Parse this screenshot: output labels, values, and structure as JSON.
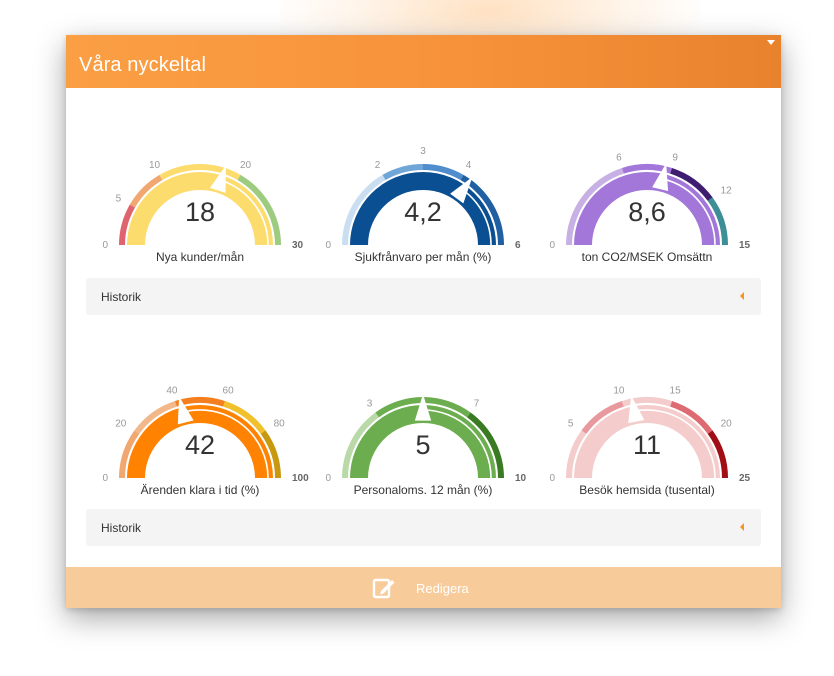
{
  "header": {
    "title": "Våra nyckeltal"
  },
  "gauges": [
    {
      "value": 18,
      "display": "18",
      "label": "Nya kunder/mån",
      "min": 0,
      "max": 30,
      "ticks": [
        0,
        5,
        10,
        20,
        30
      ],
      "bands": [
        [
          0,
          5,
          "#e0646e"
        ],
        [
          5,
          10,
          "#f0a870"
        ],
        [
          10,
          20,
          "#fddc6e"
        ],
        [
          20,
          30,
          "#9dcb7f"
        ]
      ],
      "fill": "#fddc6e"
    },
    {
      "value": 4.2,
      "display": "4,2",
      "label": "Sjukfrånvaro per mån (%)",
      "min": 0,
      "max": 6,
      "ticks": [
        0,
        2,
        3,
        4,
        6
      ],
      "bands": [
        [
          0,
          2,
          "#c9dff1"
        ],
        [
          2,
          3,
          "#6fa6d8"
        ],
        [
          3,
          4,
          "#4f8dcc"
        ],
        [
          4,
          6,
          "#1f5fa2"
        ]
      ],
      "fill": "#0b4f93"
    },
    {
      "value": 8.6,
      "display": "8,6",
      "label": "ton CO2/MSEK Omsättn",
      "min": 0,
      "max": 15,
      "ticks": [
        0,
        6,
        9,
        12,
        15
      ],
      "bands": [
        [
          0,
          6,
          "#c7b0e3"
        ],
        [
          6,
          9,
          "#a377d9"
        ],
        [
          9,
          12,
          "#3e1c70"
        ],
        [
          12,
          15,
          "#3d8e97"
        ]
      ],
      "fill": "#a377d9"
    },
    {
      "value": 42,
      "display": "42",
      "label": "Ärenden klara i tid (%)",
      "min": 0,
      "max": 100,
      "ticks": [
        0,
        20,
        40,
        60,
        80,
        100
      ],
      "bands": [
        [
          0,
          20,
          "#f0a870"
        ],
        [
          20,
          40,
          "#f2b88a"
        ],
        [
          40,
          60,
          "#f47f20"
        ],
        [
          60,
          80,
          "#f1c12d"
        ],
        [
          80,
          100,
          "#c79910"
        ]
      ],
      "fill": "#ff8200"
    },
    {
      "value": 5,
      "display": "5",
      "label": "Personaloms. 12 mån (%)",
      "min": 0,
      "max": 10,
      "ticks": [
        0,
        3,
        7,
        10
      ],
      "bands": [
        [
          0,
          3,
          "#b9d9a8"
        ],
        [
          3,
          7,
          "#6cae4f"
        ],
        [
          7,
          10,
          "#3a7a23"
        ]
      ],
      "fill": "#6cae4f"
    },
    {
      "value": 11,
      "display": "11",
      "label": "Besök hemsida (tusental)",
      "min": 0,
      "max": 25,
      "ticks": [
        0,
        5,
        10,
        15,
        20,
        25
      ],
      "bands": [
        [
          0,
          5,
          "#f4cccc"
        ],
        [
          5,
          10,
          "#e8999e"
        ],
        [
          10,
          15,
          "#f4cccc"
        ],
        [
          15,
          20,
          "#df6b72"
        ],
        [
          20,
          25,
          "#a10e15"
        ]
      ],
      "fill": "#f4cccc"
    }
  ],
  "history": {
    "label_1": "Historik",
    "label_2": "Historik"
  },
  "footer": {
    "edit_label": "Redigera"
  },
  "colors": {
    "header": "#f7923a",
    "footer": "#f8cb9a",
    "accent": "#f7931e"
  }
}
